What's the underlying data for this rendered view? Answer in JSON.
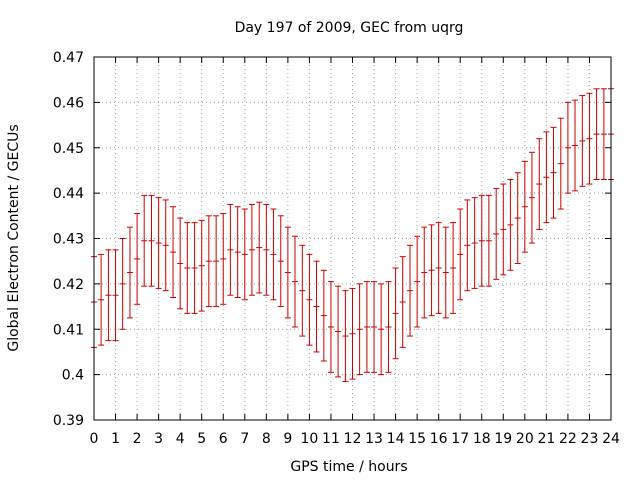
{
  "chart_data": {
    "type": "scatter",
    "title": "Day 197 of 2009, GEC from uqrg",
    "xlabel": "GPS time / hours",
    "ylabel": "Global Electron Content / GECUs",
    "xlim": [
      0,
      24
    ],
    "ylim": [
      0.39,
      0.47
    ],
    "grid": true,
    "error_bar_color": "#cc0000",
    "x_ticks": [
      "0",
      "1",
      "2",
      "3",
      "4",
      "5",
      "6",
      "7",
      "8",
      "9",
      "10",
      "11",
      "12",
      "13",
      "14",
      "15",
      "16",
      "17",
      "18",
      "19",
      "20",
      "21",
      "22",
      "23",
      "24"
    ],
    "y_ticks": [
      "0.39",
      "0.4",
      "0.41",
      "0.42",
      "0.43",
      "0.44",
      "0.45",
      "0.46",
      "0.47"
    ],
    "series": [
      {
        "error": 0.01,
        "points": [
          [
            0.0,
            0.416
          ],
          [
            0.33,
            0.4165
          ],
          [
            0.67,
            0.4175
          ],
          [
            1.0,
            0.4175
          ],
          [
            1.33,
            0.42
          ],
          [
            1.67,
            0.4225
          ],
          [
            2.0,
            0.4255
          ],
          [
            2.33,
            0.4295
          ],
          [
            2.67,
            0.4295
          ],
          [
            3.0,
            0.429
          ],
          [
            3.33,
            0.4285
          ],
          [
            3.67,
            0.427
          ],
          [
            4.0,
            0.4245
          ],
          [
            4.33,
            0.4235
          ],
          [
            4.67,
            0.4235
          ],
          [
            5.0,
            0.424
          ],
          [
            5.33,
            0.425
          ],
          [
            5.67,
            0.425
          ],
          [
            6.0,
            0.4255
          ],
          [
            6.33,
            0.4275
          ],
          [
            6.67,
            0.427
          ],
          [
            7.0,
            0.4265
          ],
          [
            7.33,
            0.4275
          ],
          [
            7.67,
            0.428
          ],
          [
            8.0,
            0.4275
          ],
          [
            8.33,
            0.4265
          ],
          [
            8.67,
            0.425
          ],
          [
            9.0,
            0.4225
          ],
          [
            9.33,
            0.4205
          ],
          [
            9.67,
            0.4185
          ],
          [
            10.0,
            0.4165
          ],
          [
            10.33,
            0.415
          ],
          [
            10.67,
            0.413
          ],
          [
            11.0,
            0.4105
          ],
          [
            11.33,
            0.4095
          ],
          [
            11.67,
            0.4085
          ],
          [
            12.0,
            0.409
          ],
          [
            12.33,
            0.41
          ],
          [
            12.67,
            0.4105
          ],
          [
            13.0,
            0.4105
          ],
          [
            13.33,
            0.41
          ],
          [
            13.67,
            0.4105
          ],
          [
            14.0,
            0.4135
          ],
          [
            14.33,
            0.416
          ],
          [
            14.67,
            0.4185
          ],
          [
            15.0,
            0.4205
          ],
          [
            15.33,
            0.4225
          ],
          [
            15.67,
            0.423
          ],
          [
            16.0,
            0.4235
          ],
          [
            16.33,
            0.4225
          ],
          [
            16.67,
            0.4235
          ],
          [
            17.0,
            0.4265
          ],
          [
            17.33,
            0.4285
          ],
          [
            17.67,
            0.429
          ],
          [
            18.0,
            0.4295
          ],
          [
            18.33,
            0.4295
          ],
          [
            18.67,
            0.431
          ],
          [
            19.0,
            0.432
          ],
          [
            19.33,
            0.433
          ],
          [
            19.67,
            0.4345
          ],
          [
            20.0,
            0.437
          ],
          [
            20.33,
            0.439
          ],
          [
            20.67,
            0.442
          ],
          [
            21.0,
            0.4435
          ],
          [
            21.33,
            0.4445
          ],
          [
            21.67,
            0.4465
          ],
          [
            22.0,
            0.45
          ],
          [
            22.33,
            0.4505
          ],
          [
            22.67,
            0.4515
          ],
          [
            23.0,
            0.452
          ],
          [
            23.33,
            0.453
          ],
          [
            23.67,
            0.453
          ],
          [
            24.0,
            0.453
          ]
        ]
      }
    ]
  }
}
